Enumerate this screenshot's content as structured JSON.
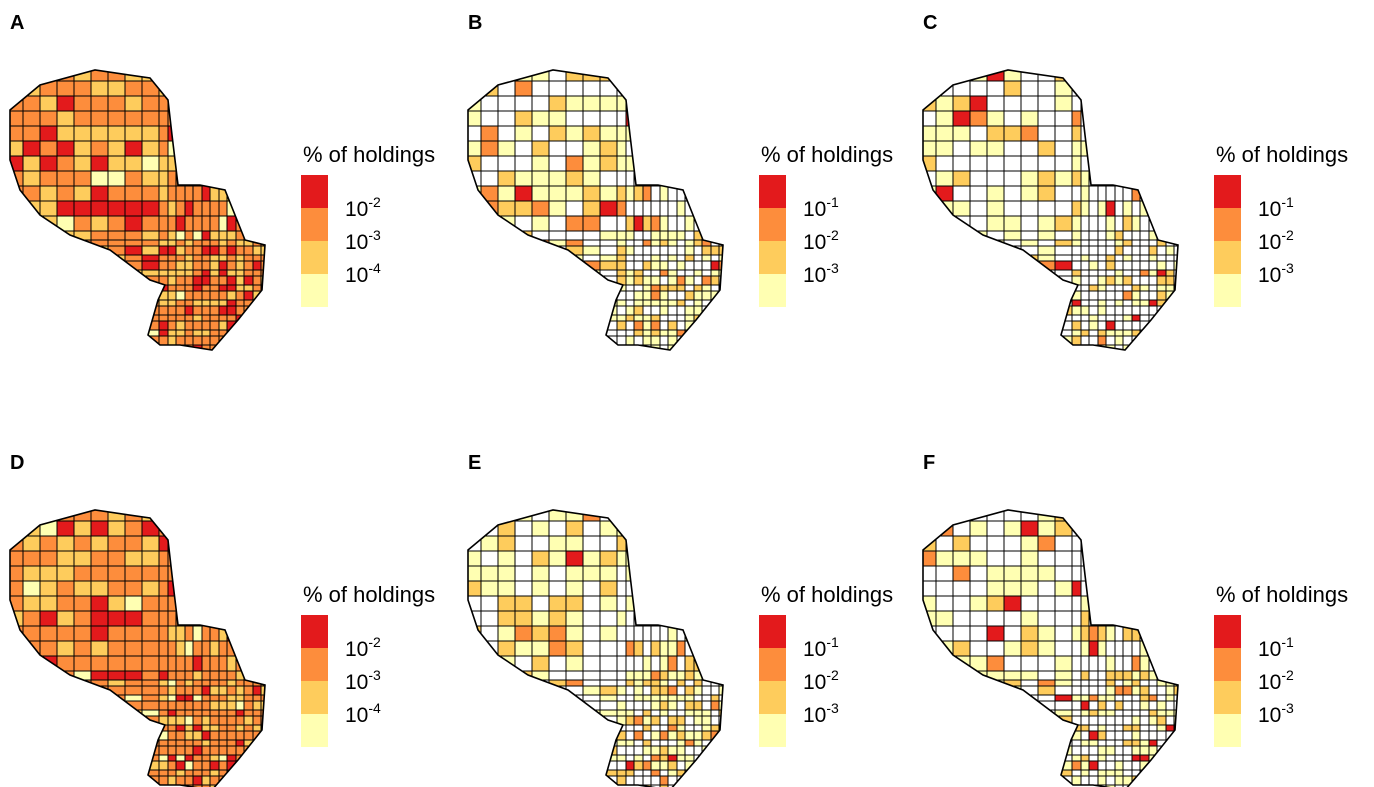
{
  "panels": [
    {
      "label": "A",
      "legend": {
        "title": "% of holdings",
        "colors": [
          "#e31a1c",
          "#fd8d3c",
          "#fecc5c",
          "#ffffb2"
        ],
        "ticks": [
          {
            "base": "10",
            "exponent": "-2"
          },
          {
            "base": "10",
            "exponent": "-3"
          },
          {
            "base": "10",
            "exponent": "-4"
          }
        ]
      }
    },
    {
      "label": "B",
      "legend": {
        "title": "% of holdings",
        "colors": [
          "#e31a1c",
          "#fd8d3c",
          "#fecc5c",
          "#ffffb2"
        ],
        "ticks": [
          {
            "base": "10",
            "exponent": "-1"
          },
          {
            "base": "10",
            "exponent": "-2"
          },
          {
            "base": "10",
            "exponent": "-3"
          }
        ]
      }
    },
    {
      "label": "C",
      "legend": {
        "title": "% of holdings",
        "colors": [
          "#e31a1c",
          "#fd8d3c",
          "#fecc5c",
          "#ffffb2"
        ],
        "ticks": [
          {
            "base": "10",
            "exponent": "-1"
          },
          {
            "base": "10",
            "exponent": "-2"
          },
          {
            "base": "10",
            "exponent": "-3"
          }
        ]
      }
    },
    {
      "label": "D",
      "legend": {
        "title": "% of holdings",
        "colors": [
          "#e31a1c",
          "#fd8d3c",
          "#fecc5c",
          "#ffffb2"
        ],
        "ticks": [
          {
            "base": "10",
            "exponent": "-2"
          },
          {
            "base": "10",
            "exponent": "-3"
          },
          {
            "base": "10",
            "exponent": "-4"
          }
        ]
      }
    },
    {
      "label": "E",
      "legend": {
        "title": "% of holdings",
        "colors": [
          "#e31a1c",
          "#fd8d3c",
          "#fecc5c",
          "#ffffb2"
        ],
        "ticks": [
          {
            "base": "10",
            "exponent": "-1"
          },
          {
            "base": "10",
            "exponent": "-2"
          },
          {
            "base": "10",
            "exponent": "-3"
          }
        ]
      }
    },
    {
      "label": "F",
      "legend": {
        "title": "% of holdings",
        "colors": [
          "#e31a1c",
          "#fd8d3c",
          "#fecc5c",
          "#ffffb2"
        ],
        "ticks": [
          {
            "base": "10",
            "exponent": "-1"
          },
          {
            "base": "10",
            "exponent": "-2"
          },
          {
            "base": "10",
            "exponent": "-3"
          }
        ]
      }
    }
  ]
}
